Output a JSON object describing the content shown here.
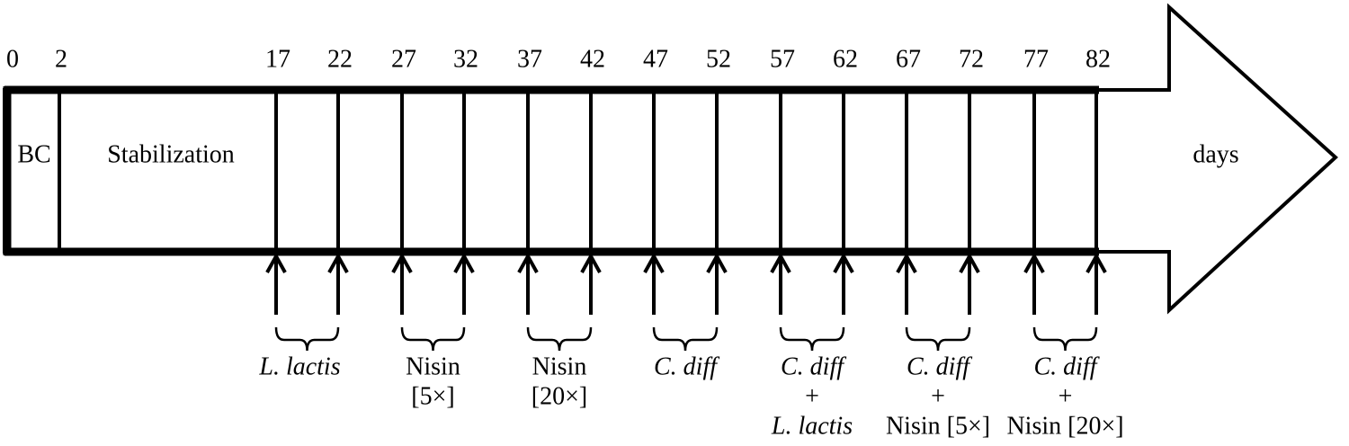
{
  "timeline": {
    "days": [
      0,
      2,
      17,
      22,
      27,
      32,
      37,
      42,
      47,
      52,
      57,
      62,
      67,
      72,
      77,
      82
    ],
    "segments": {
      "bc": "BC",
      "stabilization": "Stabilization"
    },
    "unit": "days"
  },
  "treatments": [
    [
      "L. lactis"
    ],
    [
      "Nisin",
      "[5×]"
    ],
    [
      "Nisin",
      "[20×]"
    ],
    [
      "C. diff"
    ],
    [
      "C. diff",
      "+",
      "L. lactis"
    ],
    [
      "C. diff",
      "+",
      "Nisin [5×]"
    ],
    [
      "C. diff",
      "+",
      "Nisin [20×]"
    ]
  ]
}
